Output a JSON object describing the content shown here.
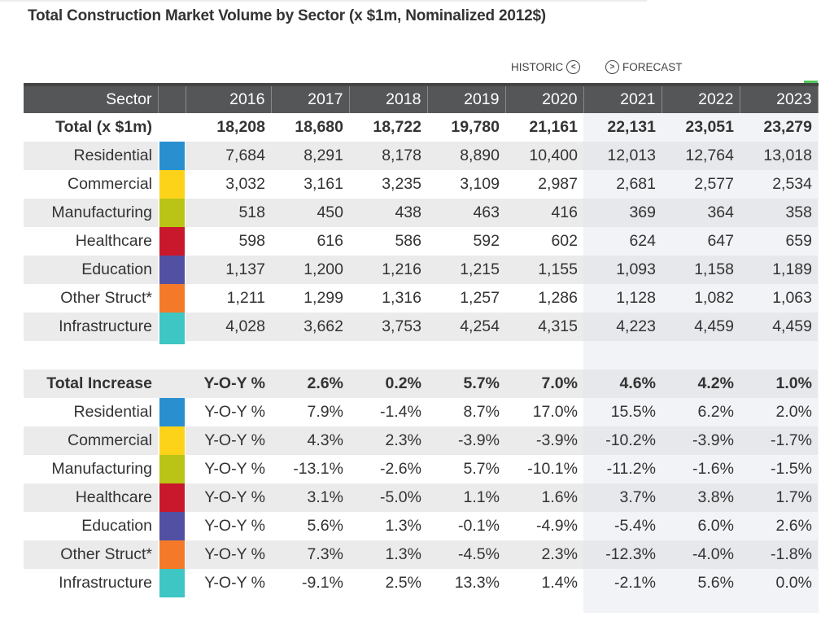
{
  "title": "Total Construction Market Volume by Sector (x $1m, Nominalized 2012$)",
  "legend": {
    "historic": "HISTORIC",
    "historic_icon": "<",
    "forecast": "FORECAST",
    "forecast_icon": ">"
  },
  "header": {
    "sector": "Sector",
    "years": [
      "2016",
      "2017",
      "2018",
      "2019",
      "2020",
      "2021",
      "2022",
      "2023"
    ]
  },
  "volume": {
    "total_label": "Total (x $1m)",
    "total_values": [
      "18,208",
      "18,680",
      "18,722",
      "19,780",
      "21,161",
      "22,131",
      "23,051",
      "23,279"
    ],
    "rows": [
      {
        "sector": "Residential",
        "color": "#2a8fcf",
        "values": [
          "7,684",
          "8,291",
          "8,178",
          "8,890",
          "10,400",
          "12,013",
          "12,764",
          "13,018"
        ]
      },
      {
        "sector": "Commercial",
        "color": "#fdd31a",
        "values": [
          "3,032",
          "3,161",
          "3,235",
          "3,109",
          "2,987",
          "2,681",
          "2,577",
          "2,534"
        ]
      },
      {
        "sector": "Manufacturing",
        "color": "#b9c417",
        "values": [
          "518",
          "450",
          "438",
          "463",
          "416",
          "369",
          "364",
          "358"
        ]
      },
      {
        "sector": "Healthcare",
        "color": "#c9182b",
        "values": [
          "598",
          "616",
          "586",
          "592",
          "602",
          "624",
          "647",
          "659"
        ]
      },
      {
        "sector": "Education",
        "color": "#5250a3",
        "values": [
          "1,137",
          "1,200",
          "1,216",
          "1,215",
          "1,155",
          "1,093",
          "1,158",
          "1,189"
        ]
      },
      {
        "sector": "Other Struct*",
        "color": "#f47a2a",
        "values": [
          "1,211",
          "1,299",
          "1,316",
          "1,257",
          "1,286",
          "1,128",
          "1,082",
          "1,063"
        ]
      },
      {
        "sector": "Infrastructure",
        "color": "#3ec6c4",
        "values": [
          "4,028",
          "3,662",
          "3,753",
          "4,254",
          "4,315",
          "4,223",
          "4,459",
          "4,459"
        ]
      }
    ]
  },
  "increase": {
    "total_label": "Total Increase",
    "yoy_label": "Y-O-Y %",
    "total_values": [
      "2.6%",
      "0.2%",
      "5.7%",
      "7.0%",
      "4.6%",
      "4.2%",
      "1.0%"
    ],
    "rows": [
      {
        "sector": "Residential",
        "color": "#2a8fcf",
        "values": [
          "7.9%",
          "-1.4%",
          "8.7%",
          "17.0%",
          "15.5%",
          "6.2%",
          "2.0%"
        ]
      },
      {
        "sector": "Commercial",
        "color": "#fdd31a",
        "values": [
          "4.3%",
          "2.3%",
          "-3.9%",
          "-3.9%",
          "-10.2%",
          "-3.9%",
          "-1.7%"
        ]
      },
      {
        "sector": "Manufacturing",
        "color": "#b9c417",
        "values": [
          "-13.1%",
          "-2.6%",
          "5.7%",
          "-10.1%",
          "-11.2%",
          "-1.6%",
          "-1.5%"
        ]
      },
      {
        "sector": "Healthcare",
        "color": "#c9182b",
        "values": [
          "3.1%",
          "-5.0%",
          "1.1%",
          "1.6%",
          "3.7%",
          "3.8%",
          "1.7%"
        ]
      },
      {
        "sector": "Education",
        "color": "#5250a3",
        "values": [
          "5.6%",
          "1.3%",
          "-0.1%",
          "-4.9%",
          "-5.4%",
          "6.0%",
          "2.6%"
        ]
      },
      {
        "sector": "Other Struct*",
        "color": "#f47a2a",
        "values": [
          "7.3%",
          "1.3%",
          "-4.5%",
          "2.3%",
          "-12.3%",
          "-4.0%",
          "-1.8%"
        ]
      },
      {
        "sector": "Infrastructure",
        "color": "#3ec6c4",
        "values": [
          "-9.1%",
          "2.5%",
          "13.3%",
          "1.4%",
          "-2.1%",
          "5.6%",
          "0.0%"
        ]
      }
    ]
  },
  "chart_data": {
    "type": "table",
    "title": "Total Construction Market Volume by Sector (x $1m, Nominalized 2012$)",
    "historic_years": [
      "2016",
      "2017",
      "2018",
      "2019",
      "2020"
    ],
    "forecast_years": [
      "2021",
      "2022",
      "2023"
    ],
    "columns": [
      "2016",
      "2017",
      "2018",
      "2019",
      "2020",
      "2021",
      "2022",
      "2023"
    ],
    "volume_series": [
      {
        "name": "Total (x $1m)",
        "values": [
          18208,
          18680,
          18722,
          19780,
          21161,
          22131,
          23051,
          23279
        ]
      },
      {
        "name": "Residential",
        "values": [
          7684,
          8291,
          8178,
          8890,
          10400,
          12013,
          12764,
          13018
        ]
      },
      {
        "name": "Commercial",
        "values": [
          3032,
          3161,
          3235,
          3109,
          2987,
          2681,
          2577,
          2534
        ]
      },
      {
        "name": "Manufacturing",
        "values": [
          518,
          450,
          438,
          463,
          416,
          369,
          364,
          358
        ]
      },
      {
        "name": "Healthcare",
        "values": [
          598,
          616,
          586,
          592,
          602,
          624,
          647,
          659
        ]
      },
      {
        "name": "Education",
        "values": [
          1137,
          1200,
          1216,
          1215,
          1155,
          1093,
          1158,
          1189
        ]
      },
      {
        "name": "Other Struct*",
        "values": [
          1211,
          1299,
          1316,
          1257,
          1286,
          1128,
          1082,
          1063
        ]
      },
      {
        "name": "Infrastructure",
        "values": [
          4028,
          3662,
          3753,
          4254,
          4315,
          4223,
          4459,
          4459
        ]
      }
    ],
    "yoy_columns": [
      "2017",
      "2018",
      "2019",
      "2020",
      "2021",
      "2022",
      "2023"
    ],
    "yoy_series": [
      {
        "name": "Total Increase",
        "values": [
          2.6,
          0.2,
          5.7,
          7.0,
          4.6,
          4.2,
          1.0
        ]
      },
      {
        "name": "Residential",
        "values": [
          7.9,
          -1.4,
          8.7,
          17.0,
          15.5,
          6.2,
          2.0
        ]
      },
      {
        "name": "Commercial",
        "values": [
          4.3,
          2.3,
          -3.9,
          -3.9,
          -10.2,
          -3.9,
          -1.7
        ]
      },
      {
        "name": "Manufacturing",
        "values": [
          -13.1,
          -2.6,
          5.7,
          -10.1,
          -11.2,
          -1.6,
          -1.5
        ]
      },
      {
        "name": "Healthcare",
        "values": [
          3.1,
          -5.0,
          1.1,
          1.6,
          3.7,
          3.8,
          1.7
        ]
      },
      {
        "name": "Education",
        "values": [
          5.6,
          1.3,
          -0.1,
          -4.9,
          -5.4,
          6.0,
          2.6
        ]
      },
      {
        "name": "Other Struct*",
        "values": [
          7.3,
          1.3,
          -4.5,
          2.3,
          -12.3,
          -4.0,
          -1.8
        ]
      },
      {
        "name": "Infrastructure",
        "values": [
          -9.1,
          2.5,
          13.3,
          1.4,
          -2.1,
          5.6,
          0.0
        ]
      }
    ]
  }
}
